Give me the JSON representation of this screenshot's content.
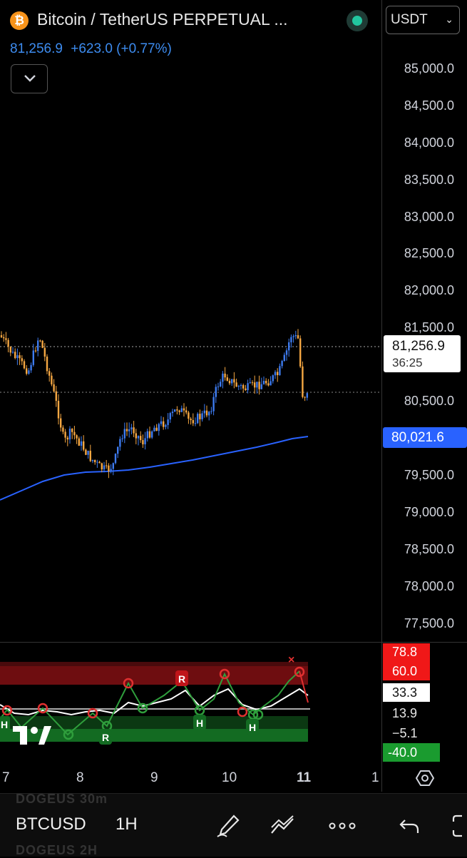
{
  "header": {
    "title": "Bitcoin / TetherUS PERPETUAL ...",
    "logo_glyph": "₿",
    "currency": "USDT",
    "last_price": "81,256.9",
    "change": "+623.0 (+0.77%)"
  },
  "price_axis": {
    "labels": [
      "85,000.0",
      "84,500.0",
      "84,000.0",
      "83,500.0",
      "83,000.0",
      "82,500.0",
      "82,000.0",
      "81,500.0",
      "80,500.0",
      "79,500.0",
      "79,000.0",
      "78,500.0",
      "78,000.0",
      "77,500.0"
    ],
    "last_price_tag": "81,256.9",
    "countdown": "36:25",
    "ma_tag": "80,021.6"
  },
  "oscillator_axis": {
    "tags": [
      {
        "text": "78.8",
        "color": "#ffffff",
        "bg": "#f01818"
      },
      {
        "text": "60.0",
        "color": "#ffffff",
        "bg": "#f01818"
      },
      {
        "text": "33.3",
        "color": "#111111",
        "bg": "#ffffff"
      },
      {
        "text": "13.9",
        "color": "#e6e6e6",
        "bg": "transparent"
      },
      {
        "text": "−5.1",
        "color": "#e6e6e6",
        "bg": "transparent"
      },
      {
        "text": "-40.0",
        "color": "#ffffff",
        "bg": "#1a9b2f"
      }
    ],
    "markers": [
      "R",
      "R",
      "H",
      "H",
      "H",
      "×"
    ]
  },
  "time_axis": {
    "labels": [
      "7",
      "8",
      "9",
      "10",
      "11",
      "1"
    ]
  },
  "bottom_bar": {
    "symbol": "BTCUSD",
    "interval": "1H",
    "ghost_row_top": "DOGEUS      30m",
    "ghost_row_bottom": "DOGEUS      2H",
    "icons": [
      "draw-icon",
      "compare-icon",
      "more-icon",
      "undo-icon"
    ]
  },
  "colors": {
    "up_candle": "#3d7bf0",
    "down_candle": "#f5a742",
    "ma_line": "#2962ff",
    "osc_red_zone": "#c0151a",
    "osc_green_zone": "#1a9b2f"
  }
}
